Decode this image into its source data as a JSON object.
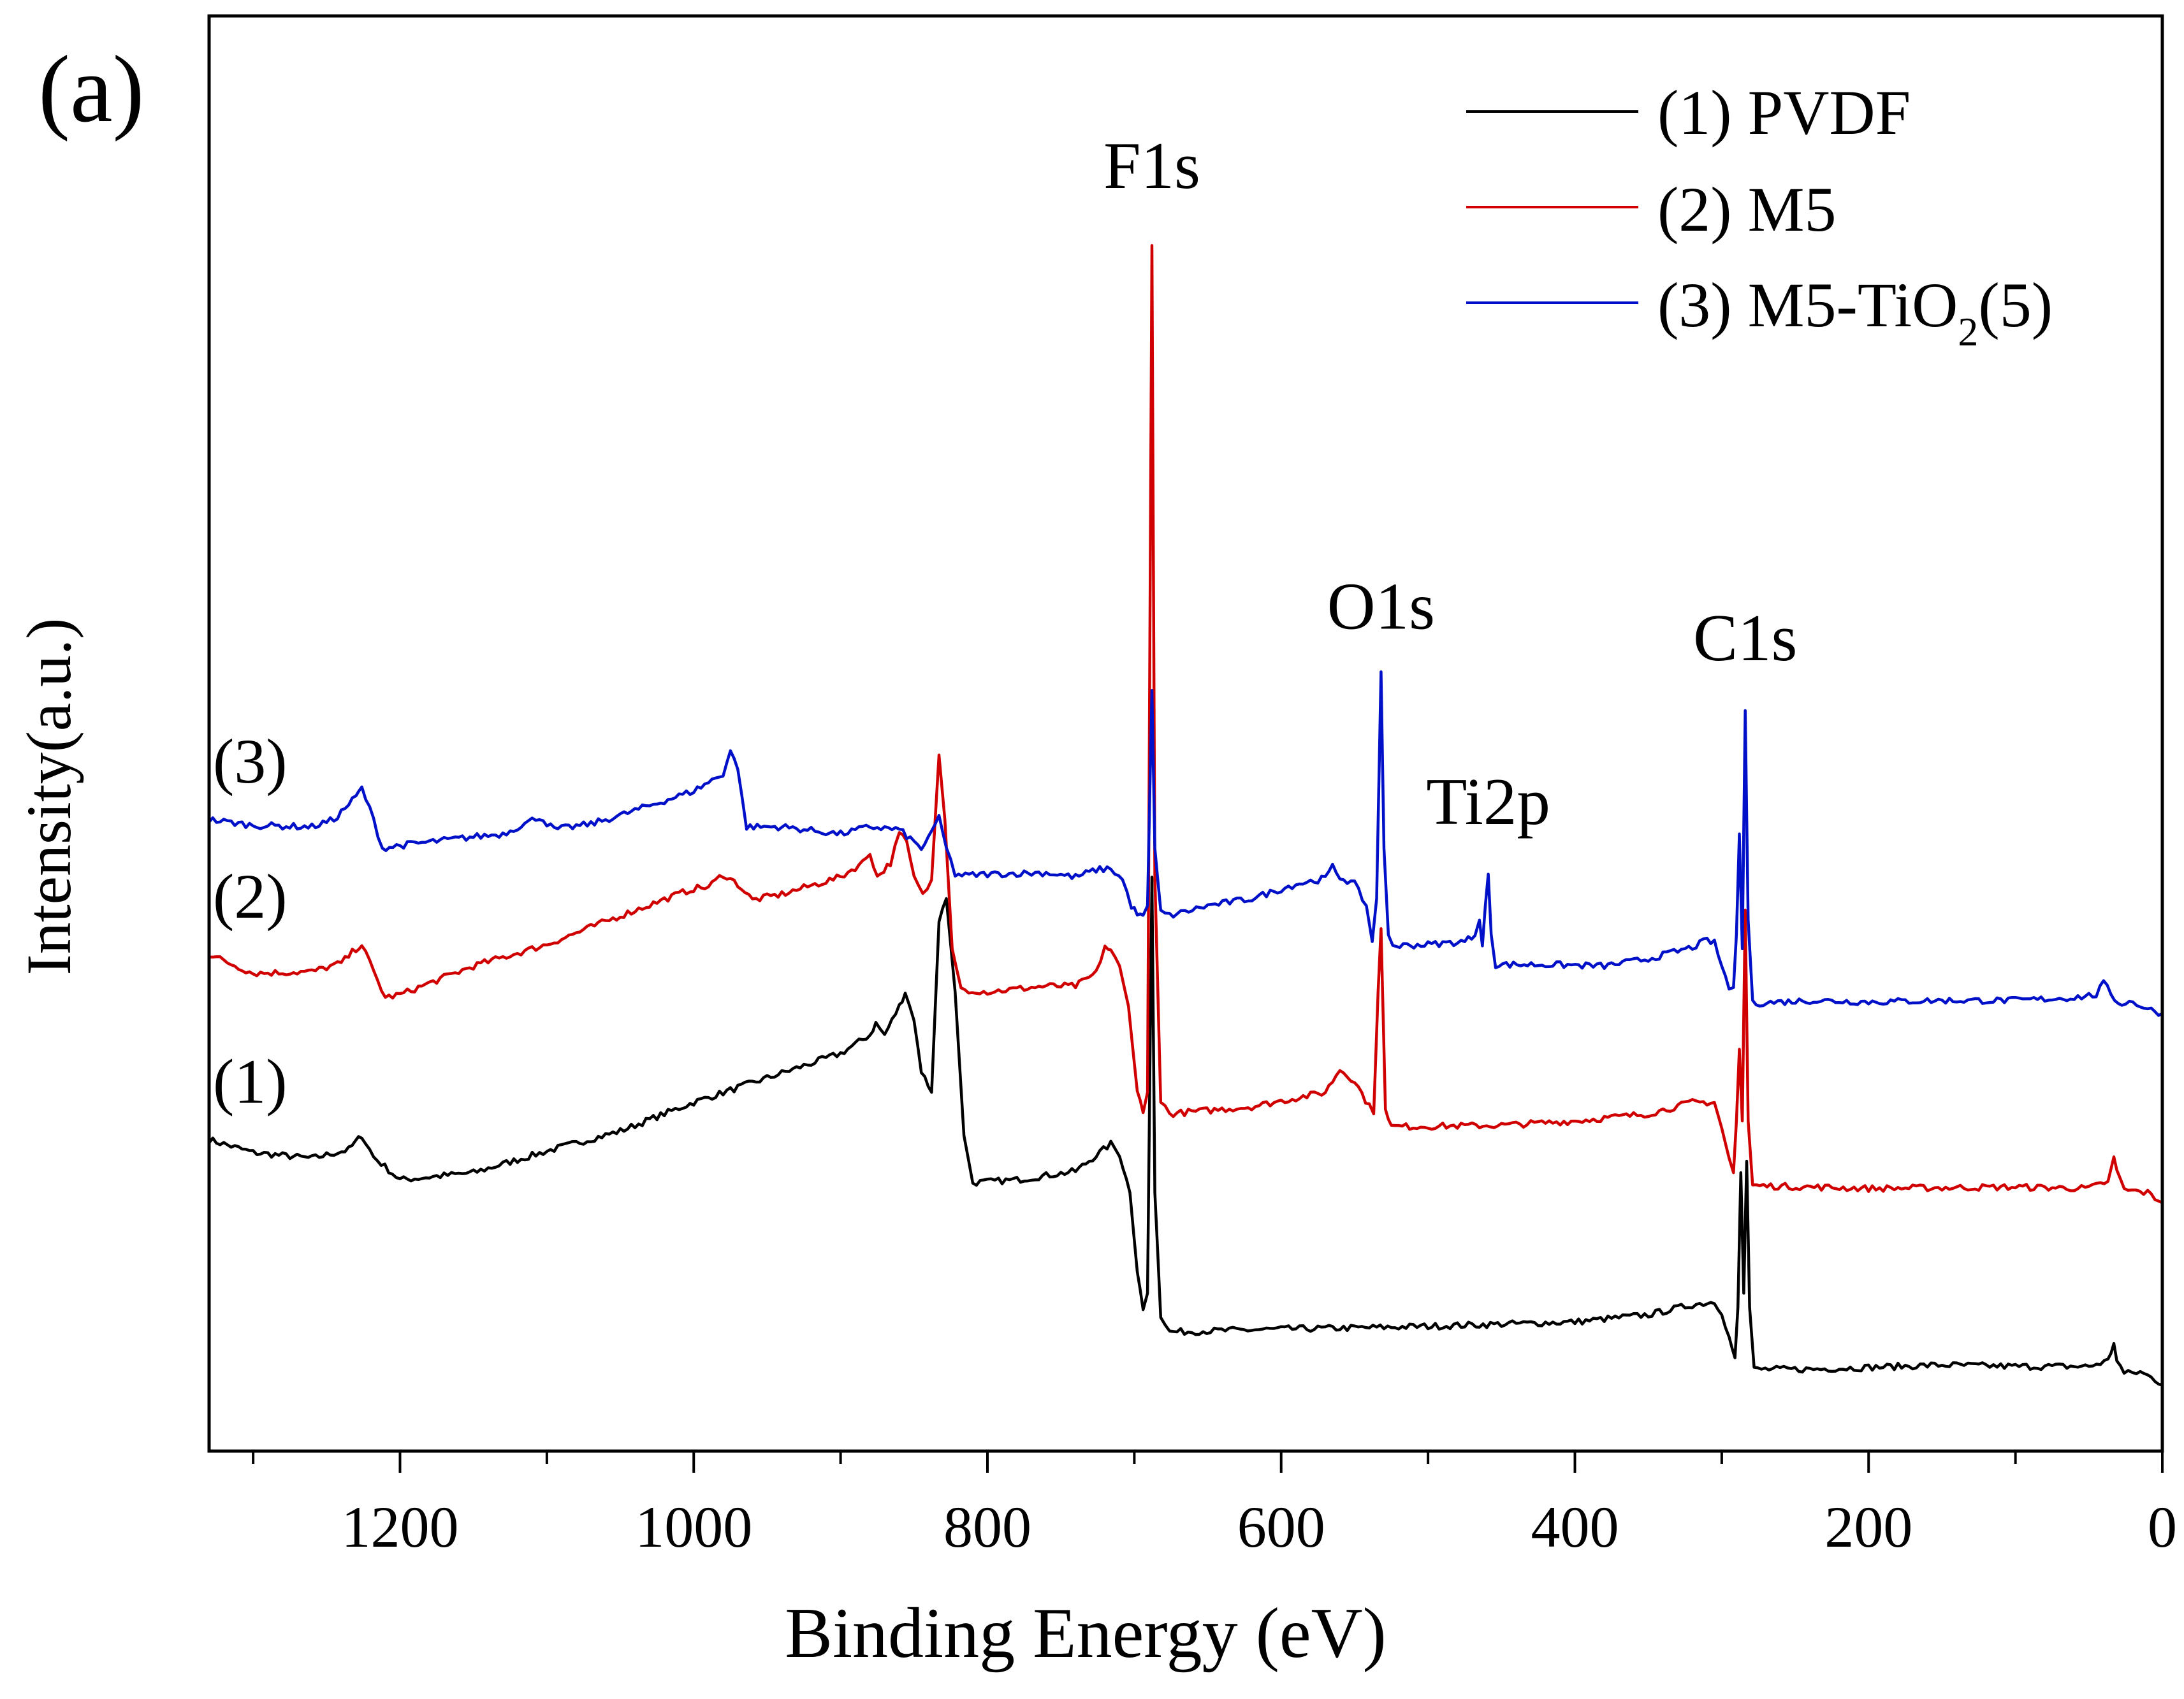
{
  "colors": {
    "pvdf": "#000000",
    "m5": "#d10000",
    "m5tio2": "#0010c8",
    "axis": "#000000"
  },
  "chart_data": {
    "type": "line",
    "panel_label": "(a)",
    "title": "",
    "xlabel": "Binding Energy (eV)",
    "ylabel": "Intensity(a.u.)",
    "xlim": [
      1330,
      0
    ],
    "ylim": [
      0,
      100
    ],
    "x_reversed": true,
    "xticks": [
      1200,
      1000,
      800,
      600,
      400,
      200,
      0
    ],
    "xtick_labels": [
      "1200",
      "1000",
      "800",
      "600",
      "400",
      "200",
      "0"
    ],
    "minor_xtick_step": 100,
    "yticks_shown": false,
    "legend": {
      "position": "top-right",
      "entries": [
        {
          "text": "(1) PVDF",
          "series": 0
        },
        {
          "text": "(2) M5",
          "series": 1
        },
        {
          "text_main": "(3) M5-TiO",
          "text_sub": "2",
          "text_tail": "(5)",
          "series": 2
        }
      ]
    },
    "series": [
      {
        "name": "(1) PVDF",
        "label": "(1)",
        "color_key": "pvdf",
        "points": [
          [
            1330,
            21.7
          ],
          [
            1300,
            20.8
          ],
          [
            1260,
            20.4
          ],
          [
            1235,
            21.0
          ],
          [
            1226,
            22.0
          ],
          [
            1218,
            20.5
          ],
          [
            1200,
            18.9
          ],
          [
            1150,
            19.4
          ],
          [
            1100,
            20.9
          ],
          [
            1050,
            22.3
          ],
          [
            1000,
            24.3
          ],
          [
            950,
            26.0
          ],
          [
            900,
            27.7
          ],
          [
            880,
            29.0
          ],
          [
            876,
            29.8
          ],
          [
            870,
            29.0
          ],
          [
            860,
            31.0
          ],
          [
            856,
            32.0
          ],
          [
            850,
            30.0
          ],
          [
            845,
            26.5
          ],
          [
            838,
            25.0
          ],
          [
            833,
            37.0
          ],
          [
            828,
            38.5
          ],
          [
            822,
            32.0
          ],
          [
            816,
            22.0
          ],
          [
            810,
            18.7
          ],
          [
            780,
            18.9
          ],
          [
            740,
            19.5
          ],
          [
            726,
            20.6
          ],
          [
            716,
            21.4
          ],
          [
            710,
            20.7
          ],
          [
            703,
            18.0
          ],
          [
            698,
            12.5
          ],
          [
            694,
            10.0
          ],
          [
            691,
            11.0
          ],
          [
            688,
            40.0
          ],
          [
            686,
            18.0
          ],
          [
            682,
            9.5
          ],
          [
            676,
            8.3
          ],
          [
            600,
            8.5
          ],
          [
            540,
            8.6
          ],
          [
            500,
            8.7
          ],
          [
            400,
            9.0
          ],
          [
            350,
            9.5
          ],
          [
            320,
            10.2
          ],
          [
            305,
            10.4
          ],
          [
            300,
            9.7
          ],
          [
            295,
            7.9
          ],
          [
            291,
            6.5
          ],
          [
            289,
            10.0
          ],
          [
            287,
            19.4
          ],
          [
            285,
            11.0
          ],
          [
            283,
            20.2
          ],
          [
            281,
            10.0
          ],
          [
            278,
            5.7
          ],
          [
            240,
            5.7
          ],
          [
            150,
            6.0
          ],
          [
            100,
            5.9
          ],
          [
            50,
            5.9
          ],
          [
            37,
            6.3
          ],
          [
            33,
            7.5
          ],
          [
            31,
            6.4
          ],
          [
            26,
            5.4
          ],
          [
            15,
            5.5
          ],
          [
            5,
            5.0
          ],
          [
            0,
            4.6
          ]
        ]
      },
      {
        "name": "(2) M5",
        "label": "(2)",
        "color_key": "m5",
        "points": [
          [
            1330,
            34.6
          ],
          [
            1300,
            33.3
          ],
          [
            1260,
            33.4
          ],
          [
            1240,
            34.0
          ],
          [
            1230,
            35.0
          ],
          [
            1226,
            35.3
          ],
          [
            1218,
            33.4
          ],
          [
            1210,
            31.6
          ],
          [
            1200,
            31.8
          ],
          [
            1150,
            33.8
          ],
          [
            1100,
            35.3
          ],
          [
            1050,
            37.3
          ],
          [
            1000,
            39.2
          ],
          [
            990,
            39.3
          ],
          [
            980,
            40.2
          ],
          [
            970,
            39.5
          ],
          [
            960,
            38.4
          ],
          [
            940,
            38.8
          ],
          [
            900,
            40.0
          ],
          [
            885,
            41.0
          ],
          [
            880,
            41.7
          ],
          [
            875,
            40.0
          ],
          [
            866,
            41.0
          ],
          [
            860,
            43.0
          ],
          [
            855,
            42.5
          ],
          [
            850,
            40.0
          ],
          [
            844,
            38.7
          ],
          [
            838,
            39.8
          ],
          [
            833,
            48.5
          ],
          [
            829,
            44.0
          ],
          [
            824,
            35.0
          ],
          [
            818,
            32.2
          ],
          [
            800,
            32.0
          ],
          [
            760,
            32.4
          ],
          [
            740,
            32.4
          ],
          [
            726,
            33.3
          ],
          [
            720,
            35.2
          ],
          [
            716,
            34.8
          ],
          [
            710,
            33.8
          ],
          [
            704,
            31.0
          ],
          [
            698,
            25.0
          ],
          [
            694,
            23.8
          ],
          [
            691,
            25.0
          ],
          [
            688,
            84.0
          ],
          [
            686,
            40.0
          ],
          [
            682,
            24.4
          ],
          [
            676,
            23.5
          ],
          [
            620,
            24.0
          ],
          [
            570,
            25.0
          ],
          [
            560,
            26.6
          ],
          [
            550,
            25.8
          ],
          [
            540,
            24.0
          ],
          [
            537,
            23.5
          ],
          [
            534,
            32.0
          ],
          [
            532,
            36.4
          ],
          [
            529,
            24.0
          ],
          [
            525,
            22.6
          ],
          [
            450,
            22.7
          ],
          [
            400,
            23.0
          ],
          [
            350,
            23.5
          ],
          [
            320,
            24.3
          ],
          [
            305,
            24.3
          ],
          [
            300,
            22.5
          ],
          [
            295,
            20.4
          ],
          [
            292,
            19.4
          ],
          [
            290,
            23.0
          ],
          [
            288,
            28.0
          ],
          [
            286,
            23.0
          ],
          [
            284,
            37.7
          ],
          [
            282,
            23.0
          ],
          [
            279,
            18.5
          ],
          [
            200,
            18.3
          ],
          [
            100,
            18.4
          ],
          [
            50,
            18.3
          ],
          [
            37,
            18.8
          ],
          [
            33,
            20.5
          ],
          [
            31,
            19.5
          ],
          [
            26,
            18.2
          ],
          [
            10,
            18.0
          ],
          [
            0,
            17.3
          ]
        ]
      },
      {
        "name": "(3) M5-TiO2(5)",
        "label": "(3)",
        "color_key": "m5tio2",
        "points": [
          [
            1330,
            44.0
          ],
          [
            1300,
            43.6
          ],
          [
            1260,
            43.5
          ],
          [
            1245,
            44.0
          ],
          [
            1230,
            45.6
          ],
          [
            1226,
            46.2
          ],
          [
            1218,
            44.0
          ],
          [
            1212,
            42.0
          ],
          [
            1200,
            42.2
          ],
          [
            1150,
            42.8
          ],
          [
            1130,
            43.0
          ],
          [
            1105,
            44.2
          ],
          [
            1095,
            43.3
          ],
          [
            1070,
            43.7
          ],
          [
            1050,
            44.3
          ],
          [
            1000,
            46.0
          ],
          [
            990,
            46.6
          ],
          [
            980,
            47.2
          ],
          [
            975,
            48.8
          ],
          [
            970,
            47.5
          ],
          [
            964,
            43.5
          ],
          [
            940,
            43.5
          ],
          [
            900,
            43.0
          ],
          [
            880,
            43.5
          ],
          [
            860,
            43.3
          ],
          [
            845,
            42.0
          ],
          [
            838,
            43.0
          ],
          [
            833,
            44.3
          ],
          [
            828,
            42.0
          ],
          [
            822,
            40.2
          ],
          [
            815,
            40.1
          ],
          [
            800,
            40.2
          ],
          [
            760,
            40.3
          ],
          [
            740,
            40.0
          ],
          [
            726,
            40.5
          ],
          [
            716,
            40.6
          ],
          [
            708,
            39.8
          ],
          [
            702,
            38.0
          ],
          [
            698,
            37.4
          ],
          [
            694,
            37.2
          ],
          [
            691,
            38.0
          ],
          [
            688,
            53.0
          ],
          [
            686,
            42.0
          ],
          [
            682,
            37.6
          ],
          [
            676,
            37.3
          ],
          [
            650,
            38.0
          ],
          [
            620,
            38.5
          ],
          [
            590,
            39.5
          ],
          [
            570,
            39.9
          ],
          [
            565,
            40.7
          ],
          [
            560,
            40.0
          ],
          [
            550,
            39.5
          ],
          [
            542,
            38.0
          ],
          [
            538,
            35.5
          ],
          [
            535,
            38.5
          ],
          [
            532,
            54.3
          ],
          [
            530,
            42.0
          ],
          [
            527,
            36.0
          ],
          [
            524,
            35.2
          ],
          [
            500,
            35.3
          ],
          [
            475,
            35.5
          ],
          [
            468,
            36.0
          ],
          [
            465,
            37.0
          ],
          [
            463,
            35.2
          ],
          [
            461,
            38.0
          ],
          [
            459,
            40.2
          ],
          [
            457,
            36.0
          ],
          [
            454,
            33.9
          ],
          [
            420,
            33.9
          ],
          [
            380,
            33.8
          ],
          [
            350,
            34.3
          ],
          [
            320,
            35.1
          ],
          [
            310,
            35.6
          ],
          [
            305,
            35.4
          ],
          [
            300,
            33.8
          ],
          [
            295,
            32.3
          ],
          [
            292,
            32.3
          ],
          [
            290,
            36.0
          ],
          [
            288,
            43.0
          ],
          [
            286,
            35.0
          ],
          [
            284,
            51.6
          ],
          [
            282,
            37.0
          ],
          [
            279,
            31.2
          ],
          [
            240,
            31.4
          ],
          [
            200,
            31.3
          ],
          [
            150,
            31.4
          ],
          [
            100,
            31.4
          ],
          [
            60,
            31.6
          ],
          [
            45,
            31.8
          ],
          [
            40,
            32.6
          ],
          [
            35,
            31.9
          ],
          [
            30,
            31.2
          ],
          [
            20,
            31.3
          ],
          [
            10,
            30.8
          ],
          [
            0,
            30.5
          ]
        ]
      }
    ],
    "peak_labels": [
      {
        "text": "F1s",
        "x": 688,
        "y": 88.0
      },
      {
        "text": "O1s",
        "x": 532,
        "y": 57.3
      },
      {
        "text": "Ti2p",
        "x": 459,
        "y": 43.7
      },
      {
        "text": "C1s",
        "x": 284,
        "y": 55.1
      }
    ]
  }
}
